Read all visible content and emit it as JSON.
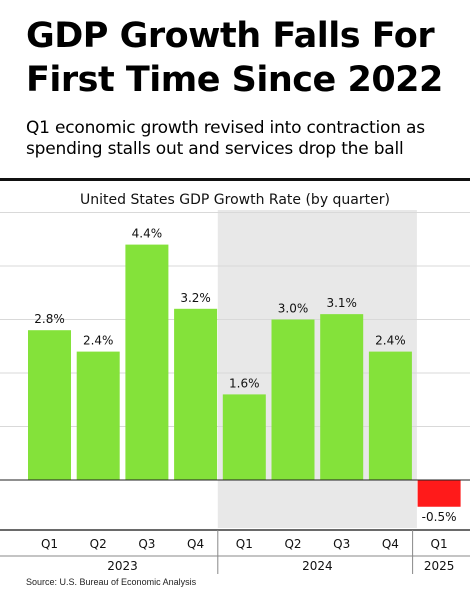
{
  "headline": "GDP Growth Falls For First Time Since 2022",
  "subhead": "Q1 economic growth revised into contraction as spending stalls out and services drop the ball",
  "source": "Source: U.S. Bureau of Economic Analysis",
  "colors": {
    "positive": "#84e23a",
    "negative": "#ff1a1a",
    "highlight_band": "#e8e8e8",
    "grid": "#d9d9d9"
  },
  "chart_data": {
    "type": "bar",
    "title": "United States GDP Growth Rate (by quarter)",
    "categories": [
      "Q1",
      "Q2",
      "Q3",
      "Q4",
      "Q1",
      "Q2",
      "Q3",
      "Q4",
      "Q1"
    ],
    "years": [
      {
        "label": "2023",
        "from": 0,
        "to": 3
      },
      {
        "label": "2024",
        "from": 4,
        "to": 7
      },
      {
        "label": "2025",
        "from": 8,
        "to": 8
      }
    ],
    "values": [
      2.8,
      2.4,
      4.4,
      3.2,
      1.6,
      3.0,
      3.1,
      2.4,
      -0.5
    ],
    "labels": [
      "2.8%",
      "2.4%",
      "4.4%",
      "3.2%",
      "1.6%",
      "3.0%",
      "3.1%",
      "2.4%",
      "-0.5%"
    ],
    "ylim": [
      -1.0,
      5.0
    ],
    "grid": true,
    "highlighted_year": "2024"
  }
}
